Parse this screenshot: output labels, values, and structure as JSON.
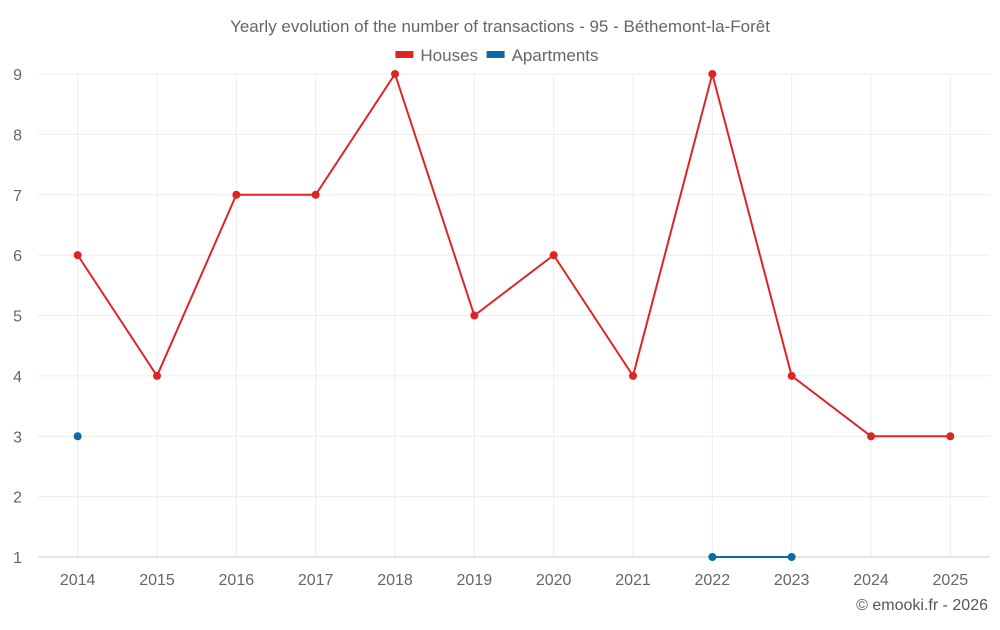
{
  "chart_data": {
    "type": "line",
    "title": "Yearly evolution of the number of transactions - 95 - Béthemont-la-Forêt",
    "xlabel": "",
    "ylabel": "",
    "categories": [
      "2014",
      "2015",
      "2016",
      "2017",
      "2018",
      "2019",
      "2020",
      "2021",
      "2022",
      "2023",
      "2024",
      "2025"
    ],
    "yticks": [
      1,
      2,
      3,
      4,
      5,
      6,
      7,
      8,
      9
    ],
    "ylim": [
      1,
      9
    ],
    "grid": true,
    "legend_position": "top-center",
    "series": [
      {
        "name": "Houses",
        "color": "#dc2626",
        "values": [
          6,
          4,
          7,
          7,
          9,
          5,
          6,
          4,
          9,
          4,
          3,
          3
        ]
      },
      {
        "name": "Apartments",
        "color": "#0b69a3",
        "values": [
          3,
          null,
          null,
          null,
          null,
          null,
          null,
          null,
          1,
          1,
          null,
          null
        ]
      }
    ],
    "credit": "© emooki.fr - 2026"
  }
}
